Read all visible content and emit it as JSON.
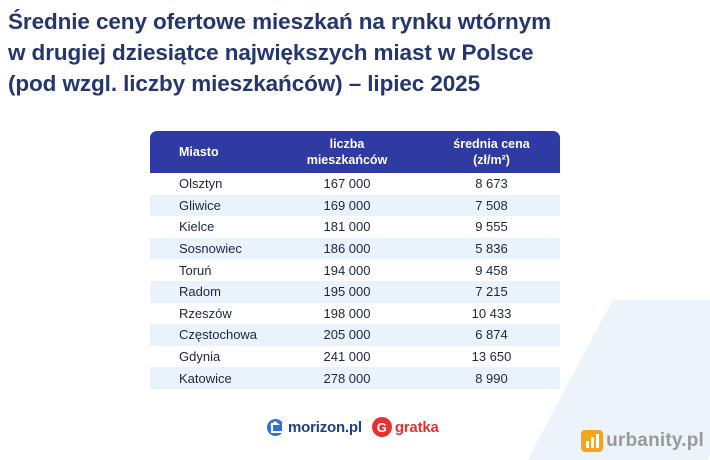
{
  "colors": {
    "title": "#24366e",
    "header_bg": "#2f3aa3",
    "row_alt": "#eaf3fc",
    "gratka": "#e8312f",
    "urbanity_icon": "#f3a61b"
  },
  "chart_data": {
    "type": "table",
    "title_lines": [
      "Średnie ceny ofertowe mieszkań na rynku wtórnym",
      "w drugiej dziesiątce największych miast w Polsce",
      "(pod wzgl. liczby mieszkańców) – lipiec 2025"
    ],
    "columns": [
      {
        "label": [
          "Miasto"
        ]
      },
      {
        "label": [
          "liczba",
          "mieszkańców"
        ]
      },
      {
        "label": [
          "średnia cena",
          "(zł/m²)"
        ]
      }
    ],
    "rows": [
      {
        "city": "Olsztyn",
        "population": "167 000",
        "price": "8 673"
      },
      {
        "city": "Gliwice",
        "population": "169 000",
        "price": "7 508"
      },
      {
        "city": "Kielce",
        "population": "181 000",
        "price": "9 555"
      },
      {
        "city": "Sosnowiec",
        "population": "186 000",
        "price": "5 836"
      },
      {
        "city": "Toruń",
        "population": "194 000",
        "price": "9 458"
      },
      {
        "city": "Radom",
        "population": "195 000",
        "price": "7 215"
      },
      {
        "city": "Rzeszów",
        "population": "198 000",
        "price": "10 433"
      },
      {
        "city": "Częstochowa",
        "population": "205 000",
        "price": "6 874"
      },
      {
        "city": "Gdynia",
        "population": "241 000",
        "price": "13 650"
      },
      {
        "city": "Katowice",
        "population": "278 000",
        "price": "8 990"
      }
    ]
  },
  "logos": {
    "morizon": "morizon.pl",
    "gratka_icon_letter": "G",
    "gratka": "gratka",
    "urbanity": "urbanity.pl"
  }
}
